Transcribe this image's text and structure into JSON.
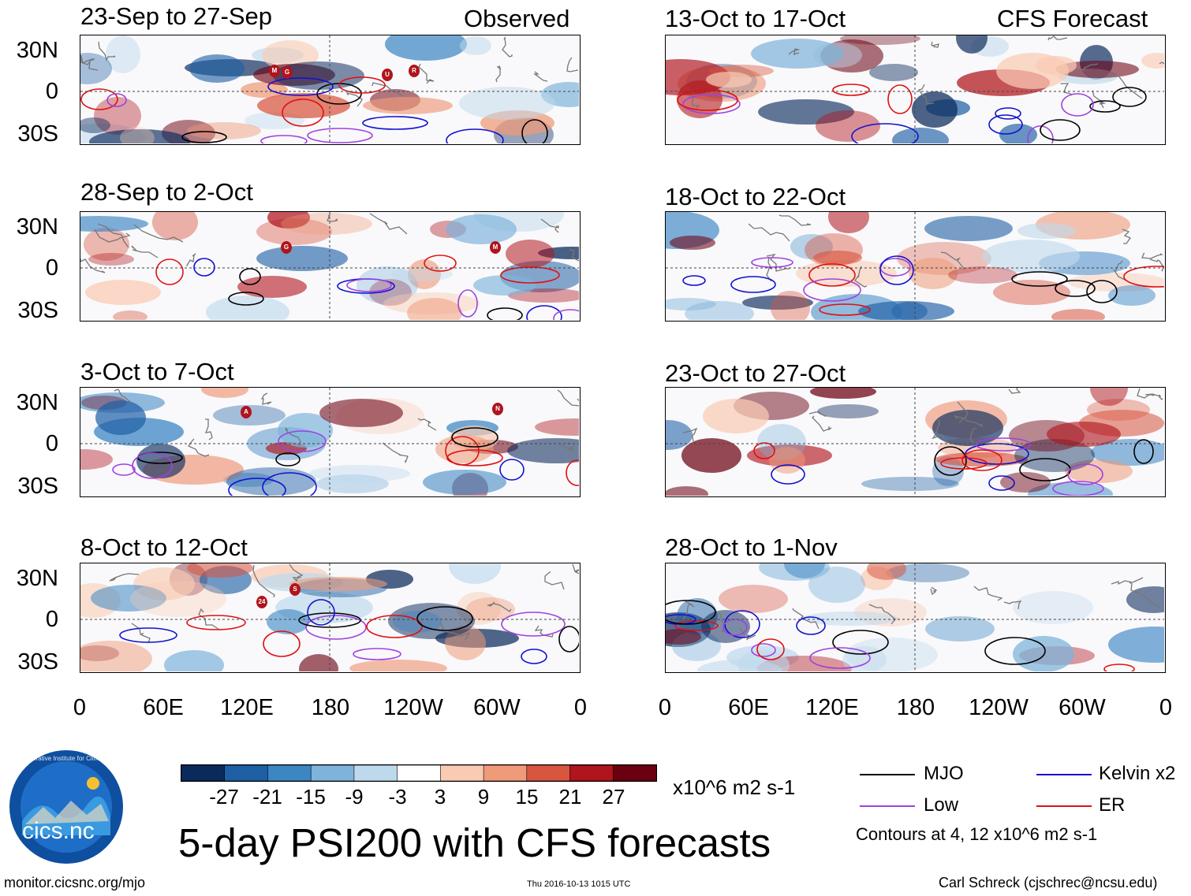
{
  "title": "5-day PSI200 with CFS forecasts",
  "headers": {
    "observed": "Observed",
    "forecast": "CFS Forecast"
  },
  "panels_observed": [
    {
      "label": "23-Sep to 27-Sep",
      "storms": [
        "M",
        "G",
        "U",
        "R"
      ]
    },
    {
      "label": "28-Sep to 2-Oct",
      "storms": [
        "G",
        "M"
      ]
    },
    {
      "label": "3-Oct to 7-Oct",
      "storms": [
        "A",
        "N"
      ]
    },
    {
      "label": "8-Oct to 12-Oct",
      "storms": [
        "24",
        "S"
      ]
    }
  ],
  "panels_forecast": [
    {
      "label": "13-Oct to 17-Oct"
    },
    {
      "label": "18-Oct to 22-Oct"
    },
    {
      "label": "23-Oct to 27-Oct"
    },
    {
      "label": "28-Oct to 1-Nov"
    }
  ],
  "lat_labels": [
    "30N",
    "0",
    "30S"
  ],
  "lon_labels": [
    "0",
    "60E",
    "120E",
    "180",
    "120W",
    "60W",
    "0"
  ],
  "colorbar": {
    "unit": "x10^6 m2 s-1",
    "ticks": [
      "-27",
      "-21",
      "-15",
      "-9",
      "-3",
      "3",
      "9",
      "15",
      "21",
      "27"
    ],
    "colors": [
      "#0b2a5c",
      "#1f5fa5",
      "#3d86c4",
      "#7eb3db",
      "#bfd9ec",
      "#ffffff",
      "#f9cbb3",
      "#ef9a79",
      "#d8553f",
      "#b0141c",
      "#6b0010"
    ]
  },
  "legend": {
    "items": [
      {
        "label": "MJO",
        "color": "#000000"
      },
      {
        "label": "Kelvin x2",
        "color": "#1010d0"
      },
      {
        "label": "Low",
        "color": "#a040e0"
      },
      {
        "label": "ER",
        "color": "#e01010"
      }
    ],
    "note": "Contours at 4, 12 x10^6 m2 s-1"
  },
  "footer": {
    "website": "monitor.cicsnc.org/mjo",
    "timestamp": "Thu 2016-10-13 1015 UTC",
    "author": "Carl Schreck (cjschrec@ncsu.edu)",
    "logo_text": "cics.nc",
    "logo_ring": "Cooperative Institute for Climate and Satellites"
  }
}
